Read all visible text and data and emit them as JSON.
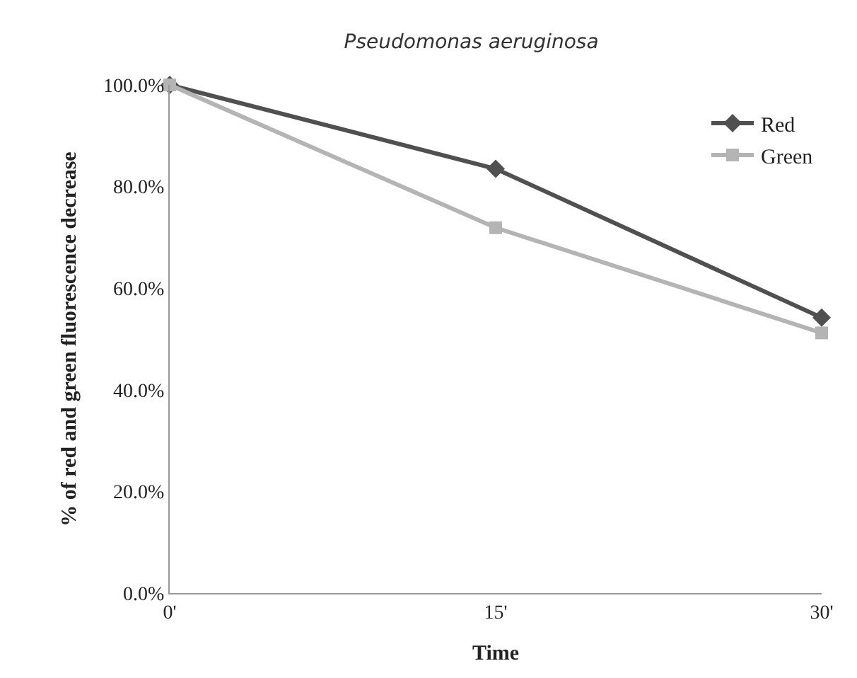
{
  "chart_data": {
    "type": "line",
    "title": "Pseudomonas aeruginosa",
    "xlabel": "Time",
    "ylabel": "% of red and green fluorescence decrease",
    "categories": [
      "0'",
      "15'",
      "30'"
    ],
    "series": [
      {
        "name": "Red",
        "color": "#505050",
        "marker": "diamond",
        "values": [
          100,
          83.5,
          54.2
        ]
      },
      {
        "name": "Green",
        "color": "#b4b4b4",
        "marker": "square",
        "values": [
          100,
          71.9,
          51.2
        ]
      }
    ],
    "ylim": [
      0,
      100
    ],
    "yticks": [
      {
        "value": 0,
        "label": "0.0%"
      },
      {
        "value": 20,
        "label": "20.0%"
      },
      {
        "value": 40,
        "label": "40.0%"
      },
      {
        "value": 60,
        "label": "60.0%"
      },
      {
        "value": 80,
        "label": "80.0%"
      },
      {
        "value": 100,
        "label": "100.0%"
      }
    ],
    "legend": "top right"
  }
}
